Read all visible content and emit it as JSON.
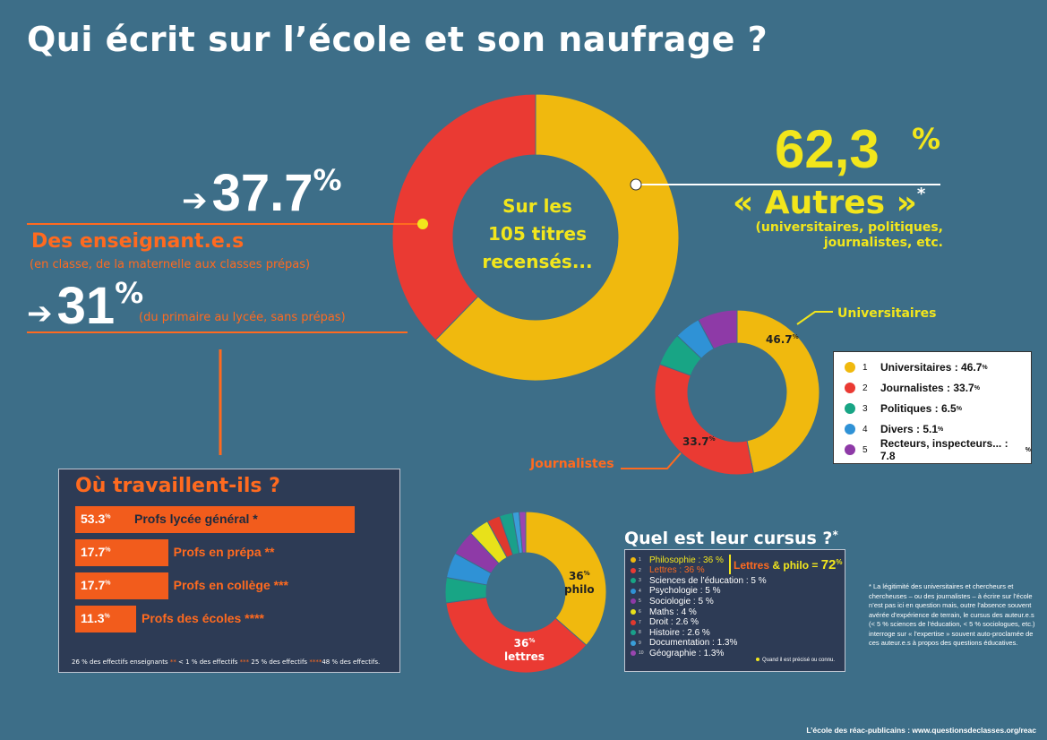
{
  "title": "Qui écrit sur l’école et son naufrage ?",
  "main_donut": {
    "center_lines": [
      "Sur les",
      "105 titres",
      "recensés..."
    ]
  },
  "teachers": {
    "arrow": "➔",
    "pct": "37.7",
    "pct_unit": "%",
    "label": "Des enseignant.e.s",
    "sub": "(en classe, de la maternelle aux classes prépas)",
    "pct2": "31",
    "pct2_unit": "%",
    "sub2": "(du primaire au lycée, sans prépas)"
  },
  "others": {
    "pct": "62,3",
    "pct_unit": "%",
    "label": "« Autres »",
    "star": "*",
    "sub1": "(universitaires, politiques,",
    "sub2": "journalistes, etc."
  },
  "work": {
    "title": "Où travaillent-ils ?",
    "rows": [
      {
        "pct": "53.3",
        "unit": "%",
        "label": "Profs lycée général",
        "stars": "*"
      },
      {
        "pct": "17.7",
        "unit": "%",
        "label": "Profs en prépa",
        "stars": "**"
      },
      {
        "pct": "17.7",
        "unit": "%",
        "label": "Profs en collège",
        "stars": "***"
      },
      {
        "pct": "11.3",
        "unit": "%",
        "label": "Profs des écoles",
        "stars": "****"
      }
    ],
    "footnote_parts": [
      "26 % des effectifs enseignants",
      "**",
      " < 1 % des effectifs",
      "***",
      " 25 % des effectifs",
      "****",
      "48 % des effectifs."
    ]
  },
  "others_donut": {
    "label_top": "Universitaires",
    "label_bottom": "Journalistes",
    "lbl1": "46.7",
    "lbl2": "33.7",
    "unit": "%"
  },
  "legend": [
    {
      "num": "1",
      "label": "Universitaires : 46.7",
      "unit": "%",
      "color": "#f0b90e"
    },
    {
      "num": "2",
      "label": "Journalistes : 33.7",
      "unit": "%",
      "color": "#ea3a33"
    },
    {
      "num": "3",
      "label": "Politiques : 6.5",
      "unit": "%",
      "color": "#18a585"
    },
    {
      "num": "4",
      "label": "Divers : 5.1",
      "unit": "%",
      "color": "#2f92d6"
    },
    {
      "num": "5",
      "label": "Recteurs, inspecteurs... : 7.8",
      "unit": "%",
      "color": "#8e3aa7"
    }
  ],
  "cursus": {
    "title": "Quel est leur cursus ?",
    "star": "*",
    "lbl_philo_pct": "36",
    "lbl_philo": "philo",
    "lbl_lettres_pct": "36",
    "lbl_lettres": "lettres",
    "unit": "%",
    "highlight_a": "Lettres",
    "highlight_b": "& philo =",
    "highlight_c": "72",
    "highlight_unit": "%",
    "rows": [
      {
        "num": "1",
        "label": "Philosophie : 36 %",
        "color": "#f0b90e"
      },
      {
        "num": "2",
        "label": "Lettres : 36 %",
        "color": "#ea3a33"
      },
      {
        "num": "3",
        "label": "Sciences de l’éducation : 5 %",
        "color": "#18a585"
      },
      {
        "num": "4",
        "label": "Psychologie : 5 %",
        "color": "#2f92d6"
      },
      {
        "num": "5",
        "label": "Sociologie : 5 %",
        "color": "#8e3aa7"
      },
      {
        "num": "6",
        "label": "Maths : 4  %",
        "color": "#e8e11a"
      },
      {
        "num": "7",
        "label": "Droit : 2.6 %",
        "color": "#e0392e"
      },
      {
        "num": "8",
        "label": "Histoire : 2.6 %",
        "color": "#1aa08a"
      },
      {
        "num": "9",
        "label": "Documentation : 1.3%",
        "color": "#3a9ed8"
      },
      {
        "num": "10",
        "label": "Géographie  : 1.3%",
        "color": "#9a46b0"
      }
    ],
    "note": "Quand il est précisé ou connu."
  },
  "note": "* La légitimité des universitaires et chercheurs et chercheuses – ou des journalistes – à écrire sur l’école n’est pas ici en question mais, outre l’absence souvent avérée d’expérience de terrain, le cursus des auteur.e.s (< 5 % sciences de l’éducation, < 5 % sociologues, etc.) interroge sur « l’expertise » souvent auto-proclamée de ces auteur.e.s à propos des questions éducatives.",
  "footer": "L’école des réac-publicains : www.questionsdeclasses.org/reac",
  "chart_data": [
    {
      "type": "pie",
      "name": "authors",
      "categories": [
        "Des enseignant.e.s",
        "« Autres »"
      ],
      "values": [
        37.7,
        62.3
      ],
      "colors": [
        "#ea3a33",
        "#f0b90e"
      ]
    },
    {
      "type": "pie",
      "name": "others",
      "categories": [
        "Universitaires",
        "Journalistes",
        "Politiques",
        "Divers",
        "Recteurs, inspecteurs..."
      ],
      "values": [
        46.7,
        33.7,
        6.5,
        5.1,
        7.8
      ],
      "colors": [
        "#f0b90e",
        "#ea3a33",
        "#18a585",
        "#2f92d6",
        "#8e3aa7"
      ]
    },
    {
      "type": "bar",
      "name": "work",
      "categories": [
        "Profs lycée général",
        "Profs en prépa",
        "Profs en collège",
        "Profs des écoles"
      ],
      "values": [
        53.3,
        17.7,
        17.7,
        11.3
      ]
    },
    {
      "type": "pie",
      "name": "cursus",
      "categories": [
        "Philosophie",
        "Lettres",
        "Sciences de l’éducation",
        "Psychologie",
        "Sociologie",
        "Maths",
        "Droit",
        "Histoire",
        "Documentation",
        "Géographie"
      ],
      "values": [
        36,
        36,
        5,
        5,
        5,
        4,
        2.6,
        2.6,
        1.3,
        1.3
      ],
      "colors": [
        "#f0b90e",
        "#ea3a33",
        "#18a585",
        "#2f92d6",
        "#8e3aa7",
        "#e8e11a",
        "#e0392e",
        "#1aa08a",
        "#3a9ed8",
        "#9a46b0"
      ]
    }
  ]
}
